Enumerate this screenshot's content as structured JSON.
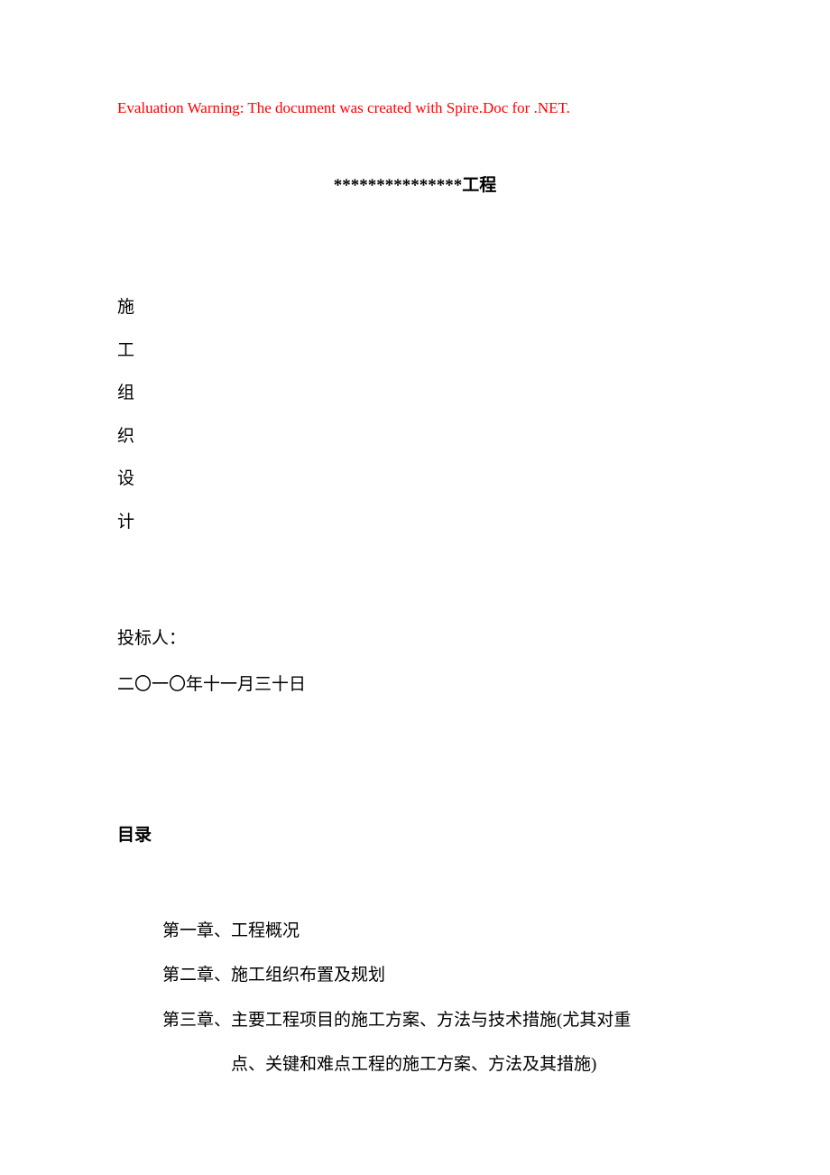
{
  "warning": "Evaluation Warning: The document was created with Spire.Doc for .NET.",
  "title": "***************工程",
  "vertical_text": [
    "施",
    "工",
    "组",
    "织",
    "设",
    "计"
  ],
  "bidder_label": "投标人：",
  "date": "二〇一〇年十一月三十日",
  "toc_header": "目录",
  "toc": [
    {
      "text": "第一章、工程概况"
    },
    {
      "text": "第二章、施工组织布置及规划"
    },
    {
      "text": "第三章、主要工程项目的施工方案、方法与技术措施(尤其对重"
    },
    {
      "text": "点、关键和难点工程的施工方案、方法及其措施)",
      "continuation": true
    }
  ],
  "colors": {
    "warning": "#ff0000",
    "text": "#000000",
    "background": "#ffffff"
  },
  "fonts": {
    "body_size": 19,
    "warning_size": 17
  }
}
